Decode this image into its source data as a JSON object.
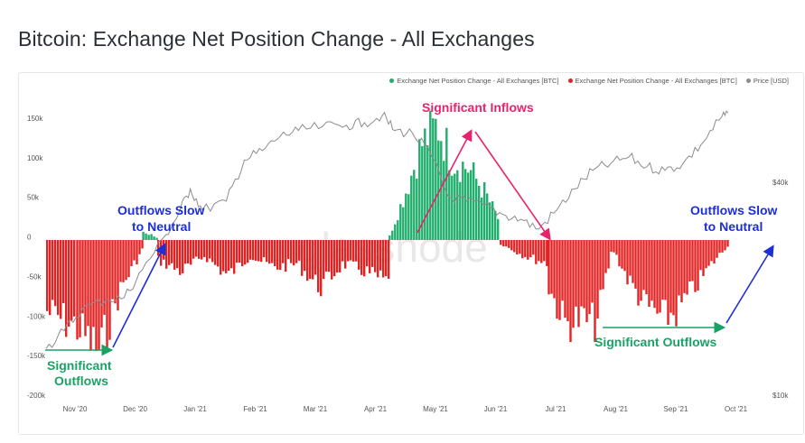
{
  "page": {
    "title": "Bitcoin: Exchange Net Position Change - All Exchanges"
  },
  "watermark": "glassnode",
  "colors": {
    "inflow": "#1fae6b",
    "outflow": "#e02424",
    "price": "#8c8c8c",
    "arrow_blue": "#1c2fd6",
    "arrow_pink": "#e8236d",
    "arrow_green": "#1aa266"
  },
  "legend": [
    {
      "label": "Exchange Net Position Change - All Exchanges [BTC]",
      "color": "#1fae6b"
    },
    {
      "label": "Exchange Net Position Change - All Exchanges [BTC]",
      "color": "#e02424"
    },
    {
      "label": "Price [USD]",
      "color": "#8c8c8c"
    }
  ],
  "annotations": {
    "sig_inflows": "Significant Inflows",
    "outflows_slow_left_1": "Outflows Slow",
    "outflows_slow_left_2": "to Neutral",
    "outflows_slow_right_1": "Outflows Slow",
    "outflows_slow_right_2": "to Neutral",
    "sig_outflows_left_1": "Significant",
    "sig_outflows_left_2": "Outflows",
    "sig_outflows_right": "Significant Outflows"
  },
  "chart_data": {
    "type": "bar",
    "title": "Bitcoin: Exchange Net Position Change - All Exchanges",
    "y_left_ticks": [
      "150k",
      "100k",
      "50k",
      "0",
      "-50k",
      "-100k",
      "-150k",
      "-200k"
    ],
    "y_left_range": [
      -200000,
      150000
    ],
    "y_right_ticks": [
      "$40k",
      "$10k"
    ],
    "y_right_scale": "log",
    "x_ticks": [
      "Nov '20",
      "Dec '20",
      "Jan '21",
      "Feb '21",
      "Mar '21",
      "Apr '21",
      "May '21",
      "Jun '21",
      "Jul '21",
      "Aug '21",
      "Sep '21",
      "Oct '21"
    ],
    "segments": [
      {
        "from_month": 0.0,
        "to_month": 0.5,
        "shape": [
          -90000,
          -100000,
          -110000
        ]
      },
      {
        "from_month": 0.5,
        "to_month": 1.6,
        "shape": [
          -110000,
          -140000,
          -60000,
          -10000
        ]
      },
      {
        "from_month": 1.6,
        "to_month": 1.85,
        "shape": [
          10000,
          7000,
          2000
        ]
      },
      {
        "from_month": 1.85,
        "to_month": 5.7,
        "shape": [
          -25000,
          -40000,
          -20000,
          -45000,
          -20000,
          -35000,
          -30000,
          -60000,
          -30000,
          -40000,
          -55000
        ]
      },
      {
        "from_month": 5.7,
        "to_month": 7.55,
        "shape": [
          5000,
          60000,
          120000,
          145000,
          100000,
          90000,
          60000,
          20000
        ]
      },
      {
        "from_month": 7.55,
        "to_month": 8.35,
        "shape": [
          -5000,
          -20000,
          -30000
        ]
      },
      {
        "from_month": 8.35,
        "to_month": 10.2,
        "shape": [
          -60000,
          -105000,
          -100000,
          -105000,
          -10000,
          -50000,
          -80000,
          -95000
        ]
      },
      {
        "from_month": 10.2,
        "to_month": 11.35,
        "shape": [
          -100000,
          -90000,
          -60000,
          -30000,
          -5000
        ]
      }
    ],
    "series": [
      {
        "name": "Exchange Net Position Change - All Exchanges [BTC]",
        "color": "#1fae6b",
        "note": "positive values"
      },
      {
        "name": "Exchange Net Position Change - All Exchanges [BTC]",
        "color": "#e02424",
        "note": "negative values"
      },
      {
        "name": "Price [USD]",
        "color": "#8c8c8c",
        "x_month": [
          0.0,
          0.3,
          0.6,
          1.0,
          1.3,
          1.6,
          2.0,
          2.2,
          2.4,
          2.6,
          3.0,
          3.3,
          3.6,
          3.9,
          4.2,
          4.6,
          5.0,
          5.3,
          5.6,
          5.8,
          6.1,
          6.4,
          6.7,
          7.0,
          7.3,
          7.6,
          7.9,
          8.2,
          8.5,
          8.8,
          9.1,
          9.4,
          9.7,
          10.0,
          10.3,
          10.6,
          10.9,
          11.2,
          11.35
        ],
        "values": [
          13800,
          15500,
          17800,
          19000,
          19200,
          23000,
          29000,
          33000,
          39000,
          34000,
          36000,
          47000,
          50000,
          55000,
          57000,
          58500,
          59000,
          60000,
          63000,
          57000,
          56000,
          49000,
          37000,
          36000,
          35000,
          33000,
          32000,
          30000,
          34000,
          39000,
          44000,
          46000,
          48000,
          45000,
          44000,
          46000,
          52000,
          61000,
          64000
        ]
      }
    ]
  }
}
